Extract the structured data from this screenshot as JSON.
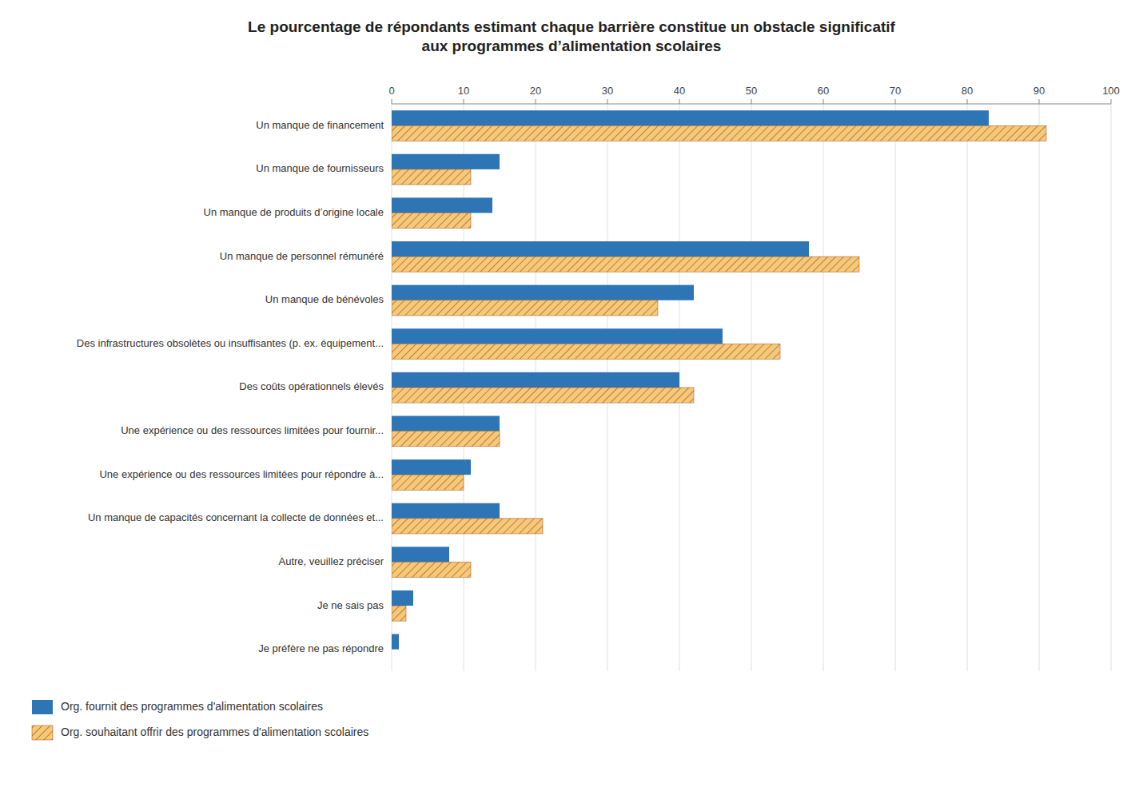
{
  "chart_data": {
    "type": "bar",
    "orientation": "horizontal",
    "title": "Le pourcentage de répondants estimant chaque barrière constitue un obstacle significatif\naux programmes d’alimentation scolaires",
    "categories": [
      "Un manque de financement",
      "Un manque de fournisseurs",
      "Un manque de produits d’origine locale",
      "Un manque de personnel rémunéré",
      "Un manque de bénévoles",
      "Des infrastructures obsolètes ou insuffisantes (p. ex. équipement...",
      "Des coûts opérationnels élevés",
      "Une expérience ou des ressources limitées pour fournir...",
      "Une expérience ou des ressources limitées pour répondre à...",
      "Un manque de capacités concernant la collecte de données et...",
      "Autre, veuillez préciser",
      "Je ne sais pas",
      "Je préfère ne pas répondre"
    ],
    "series": [
      {
        "name": "Org. fournit des programmes d'alimentation scolaires",
        "color": "#2E75B6",
        "values": [
          83,
          15,
          14,
          58,
          42,
          46,
          40,
          15,
          11,
          15,
          8,
          3,
          1
        ]
      },
      {
        "name": "Org. souhaitant offrir des programmes d'alimentation scolaires",
        "color": "#F5C97A",
        "values": [
          91,
          11,
          11,
          65,
          37,
          54,
          42,
          15,
          10,
          21,
          11,
          2,
          0
        ]
      }
    ],
    "xlim": [
      0,
      100
    ],
    "xticks": [
      0,
      10,
      20,
      30,
      40,
      50,
      60,
      70,
      80,
      90,
      100
    ],
    "grid": true,
    "legend": "bottom"
  }
}
